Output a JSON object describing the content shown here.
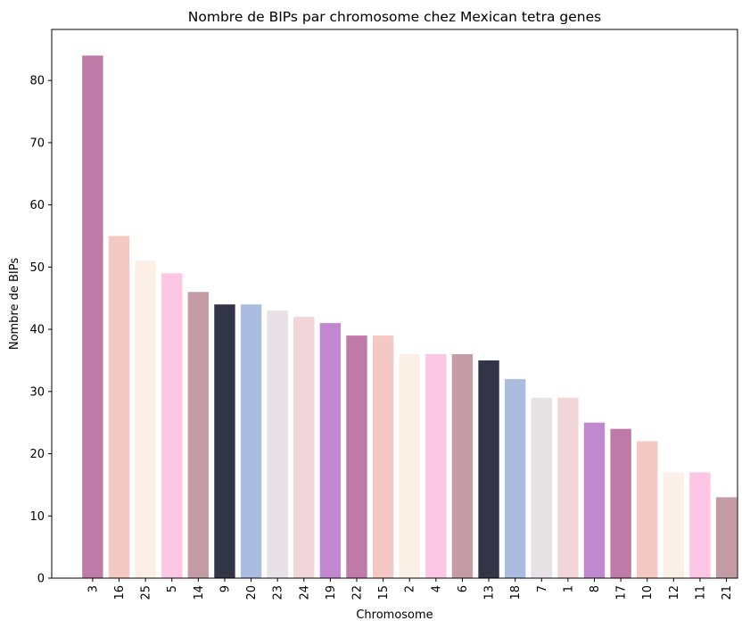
{
  "chart_data": {
    "type": "bar",
    "title": "Nombre de BIPs par chromosome chez Mexican tetra genes",
    "xlabel": "Chromosome",
    "ylabel": "Nombre de BIPs",
    "categories": [
      "3",
      "16",
      "25",
      "5",
      "14",
      "9",
      "20",
      "23",
      "24",
      "19",
      "22",
      "15",
      "2",
      "4",
      "6",
      "13",
      "18",
      "7",
      "1",
      "8",
      "17",
      "10",
      "12",
      "11",
      "21"
    ],
    "values": [
      84,
      55,
      51,
      49,
      46,
      44,
      44,
      43,
      42,
      41,
      39,
      39,
      36,
      36,
      36,
      35,
      32,
      29,
      29,
      25,
      24,
      22,
      17,
      17,
      13
    ],
    "colors": [
      "#be7ba8",
      "#f5c9c3",
      "#fcf0e6",
      "#fdc6e4",
      "#c59ba6",
      "#313547",
      "#aabde0",
      "#e8e1e6",
      "#f2d5d9",
      "#c088ce",
      "#be7ba8",
      "#f5c9c3",
      "#fcf0e6",
      "#fdc6e4",
      "#c59ba6",
      "#313547",
      "#aabde0",
      "#e8e1e6",
      "#f2d5d9",
      "#c088ce",
      "#be7ba8",
      "#f5c9c3",
      "#fcf0e6",
      "#fdc6e4",
      "#c59ba6"
    ],
    "ylim": [
      0,
      88.2
    ],
    "yticks": [
      0,
      10,
      20,
      30,
      40,
      50,
      60,
      70,
      80
    ],
    "grid": false,
    "legend": "none"
  }
}
